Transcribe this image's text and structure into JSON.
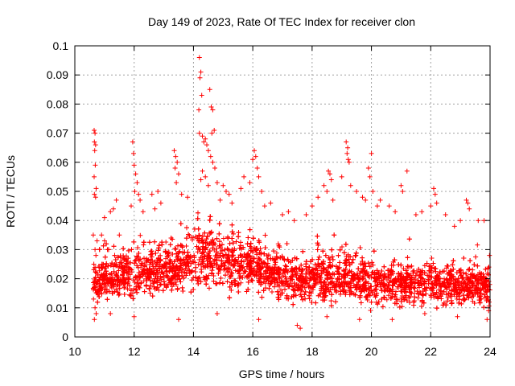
{
  "chart_data": {
    "type": "scatter",
    "title": "Day 149 of 2023, Rate Of TEC Index for receiver clon",
    "xlabel": "GPS time / hours",
    "ylabel": "ROTI / TECUs",
    "xlim": [
      10,
      24
    ],
    "ylim": [
      0,
      0.1
    ],
    "x_ticks": [
      "10",
      "12",
      "14",
      "16",
      "18",
      "20",
      "22",
      "24"
    ],
    "y_ticks": [
      "0",
      "0.01",
      "0.02",
      "0.03",
      "0.04",
      "0.05",
      "0.06",
      "0.07",
      "0.08",
      "0.09",
      "0.1"
    ],
    "grid": true,
    "marker": "plus",
    "color": "#ff0000",
    "series": [
      {
        "points": [
          [
            10.65,
            0.071
          ],
          [
            10.68,
            0.07
          ],
          [
            10.66,
            0.067
          ],
          [
            10.7,
            0.066
          ],
          [
            10.67,
            0.064
          ],
          [
            10.69,
            0.059
          ],
          [
            10.65,
            0.055
          ],
          [
            10.72,
            0.051
          ],
          [
            10.66,
            0.049
          ],
          [
            10.7,
            0.048
          ],
          [
            10.62,
            0.035
          ],
          [
            10.75,
            0.033
          ],
          [
            10.68,
            0.03
          ],
          [
            10.71,
            0.028
          ],
          [
            10.64,
            0.025
          ],
          [
            10.73,
            0.022
          ],
          [
            10.66,
            0.019
          ],
          [
            10.7,
            0.016
          ],
          [
            10.63,
            0.013
          ],
          [
            10.68,
            0.01
          ],
          [
            10.72,
            0.008
          ],
          [
            10.66,
            0.006
          ],
          [
            10.9,
            0.035
          ],
          [
            11.0,
            0.033
          ],
          [
            11.1,
            0.03
          ],
          [
            11.0,
            0.041
          ],
          [
            11.2,
            0.043
          ],
          [
            11.3,
            0.044
          ],
          [
            11.4,
            0.047
          ],
          [
            11.5,
            0.035
          ],
          [
            11.95,
            0.067
          ],
          [
            11.98,
            0.063
          ],
          [
            12.0,
            0.059
          ],
          [
            12.05,
            0.056
          ],
          [
            12.1,
            0.053
          ],
          [
            12.02,
            0.05
          ],
          [
            12.15,
            0.049
          ],
          [
            12.2,
            0.047
          ],
          [
            11.9,
            0.045
          ],
          [
            12.3,
            0.043
          ],
          [
            12.6,
            0.049
          ],
          [
            12.8,
            0.05
          ],
          [
            12.9,
            0.046
          ],
          [
            12.7,
            0.044
          ],
          [
            13.35,
            0.064
          ],
          [
            13.4,
            0.062
          ],
          [
            13.45,
            0.06
          ],
          [
            13.38,
            0.058
          ],
          [
            13.5,
            0.056
          ],
          [
            13.42,
            0.053
          ],
          [
            13.6,
            0.049
          ],
          [
            13.8,
            0.048
          ],
          [
            14.2,
            0.096
          ],
          [
            14.25,
            0.091
          ],
          [
            14.22,
            0.089
          ],
          [
            14.28,
            0.083
          ],
          [
            14.18,
            0.078
          ],
          [
            14.2,
            0.07
          ],
          [
            14.3,
            0.069
          ],
          [
            14.35,
            0.067
          ],
          [
            14.4,
            0.068
          ],
          [
            14.45,
            0.066
          ],
          [
            14.55,
            0.085
          ],
          [
            14.6,
            0.079
          ],
          [
            14.65,
            0.078
          ],
          [
            14.62,
            0.07
          ],
          [
            14.7,
            0.071
          ],
          [
            14.5,
            0.064
          ],
          [
            14.58,
            0.062
          ],
          [
            14.65,
            0.06
          ],
          [
            14.72,
            0.058
          ],
          [
            14.3,
            0.057
          ],
          [
            14.4,
            0.055
          ],
          [
            14.25,
            0.054
          ],
          [
            14.5,
            0.052
          ],
          [
            14.8,
            0.053
          ],
          [
            15.0,
            0.052
          ],
          [
            15.1,
            0.05
          ],
          [
            15.2,
            0.049
          ],
          [
            14.9,
            0.047
          ],
          [
            15.3,
            0.046
          ],
          [
            15.6,
            0.051
          ],
          [
            15.7,
            0.055
          ],
          [
            15.9,
            0.053
          ],
          [
            16.05,
            0.064
          ],
          [
            16.1,
            0.062
          ],
          [
            16.0,
            0.061
          ],
          [
            16.15,
            0.058
          ],
          [
            16.2,
            0.055
          ],
          [
            16.3,
            0.05
          ],
          [
            16.4,
            0.045
          ],
          [
            16.6,
            0.046
          ],
          [
            17.0,
            0.042
          ],
          [
            17.2,
            0.043
          ],
          [
            17.4,
            0.04
          ],
          [
            17.8,
            0.042
          ],
          [
            18.0,
            0.045
          ],
          [
            18.2,
            0.048
          ],
          [
            18.4,
            0.052
          ],
          [
            18.55,
            0.057
          ],
          [
            18.6,
            0.056
          ],
          [
            18.65,
            0.054
          ],
          [
            18.5,
            0.05
          ],
          [
            18.7,
            0.047
          ],
          [
            19.15,
            0.067
          ],
          [
            19.2,
            0.065
          ],
          [
            19.18,
            0.063
          ],
          [
            19.22,
            0.061
          ],
          [
            19.25,
            0.06
          ],
          [
            19.0,
            0.055
          ],
          [
            19.3,
            0.052
          ],
          [
            19.5,
            0.05
          ],
          [
            19.7,
            0.048
          ],
          [
            19.8,
            0.047
          ],
          [
            19.9,
            0.058
          ],
          [
            19.95,
            0.055
          ],
          [
            20.0,
            0.063
          ],
          [
            20.05,
            0.05
          ],
          [
            20.2,
            0.045
          ],
          [
            20.3,
            0.047
          ],
          [
            20.6,
            0.045
          ],
          [
            20.8,
            0.043
          ],
          [
            21.0,
            0.052
          ],
          [
            21.05,
            0.05
          ],
          [
            21.2,
            0.057
          ],
          [
            21.5,
            0.042
          ],
          [
            21.7,
            0.043
          ],
          [
            22.0,
            0.045
          ],
          [
            22.1,
            0.051
          ],
          [
            22.15,
            0.049
          ],
          [
            22.2,
            0.046
          ],
          [
            22.5,
            0.042
          ],
          [
            22.8,
            0.038
          ],
          [
            23.0,
            0.04
          ],
          [
            23.2,
            0.047
          ],
          [
            23.25,
            0.046
          ],
          [
            23.3,
            0.044
          ],
          [
            23.6,
            0.04
          ],
          [
            23.8,
            0.04
          ],
          [
            11.2,
            0.008
          ],
          [
            12.0,
            0.007
          ],
          [
            13.5,
            0.006
          ],
          [
            14.8,
            0.008
          ],
          [
            16.2,
            0.006
          ],
          [
            17.5,
            0.004
          ],
          [
            17.6,
            0.003
          ],
          [
            18.5,
            0.007
          ],
          [
            19.6,
            0.006
          ],
          [
            20.7,
            0.006
          ],
          [
            21.8,
            0.008
          ],
          [
            22.9,
            0.007
          ],
          [
            23.9,
            0.006
          ],
          [
            23.95,
            0.009
          ],
          [
            23.97,
            0.012
          ],
          [
            23.99,
            0.018
          ],
          [
            23.96,
            0.024
          ],
          [
            23.98,
            0.028
          ]
        ],
        "band": {
          "x_range": [
            10.62,
            24.0
          ],
          "envelope": [
            [
              10.6,
              0.01,
              0.03
            ],
            [
              11.0,
              0.009,
              0.034
            ],
            [
              11.5,
              0.01,
              0.035
            ],
            [
              12.0,
              0.01,
              0.037
            ],
            [
              12.5,
              0.01,
              0.038
            ],
            [
              13.0,
              0.011,
              0.039
            ],
            [
              13.5,
              0.011,
              0.042
            ],
            [
              14.0,
              0.012,
              0.044
            ],
            [
              14.5,
              0.013,
              0.046
            ],
            [
              15.0,
              0.013,
              0.045
            ],
            [
              15.5,
              0.012,
              0.043
            ],
            [
              16.0,
              0.012,
              0.042
            ],
            [
              16.5,
              0.011,
              0.036
            ],
            [
              17.0,
              0.01,
              0.035
            ],
            [
              17.5,
              0.009,
              0.033
            ],
            [
              18.0,
              0.009,
              0.034
            ],
            [
              18.5,
              0.009,
              0.036
            ],
            [
              19.0,
              0.009,
              0.035
            ],
            [
              19.5,
              0.009,
              0.034
            ],
            [
              20.0,
              0.008,
              0.033
            ],
            [
              20.5,
              0.008,
              0.032
            ],
            [
              21.0,
              0.008,
              0.033
            ],
            [
              21.5,
              0.008,
              0.031
            ],
            [
              22.0,
              0.008,
              0.032
            ],
            [
              22.5,
              0.008,
              0.031
            ],
            [
              23.0,
              0.008,
              0.03
            ],
            [
              23.5,
              0.008,
              0.03
            ],
            [
              24.0,
              0.008,
              0.029
            ]
          ]
        }
      }
    ]
  }
}
